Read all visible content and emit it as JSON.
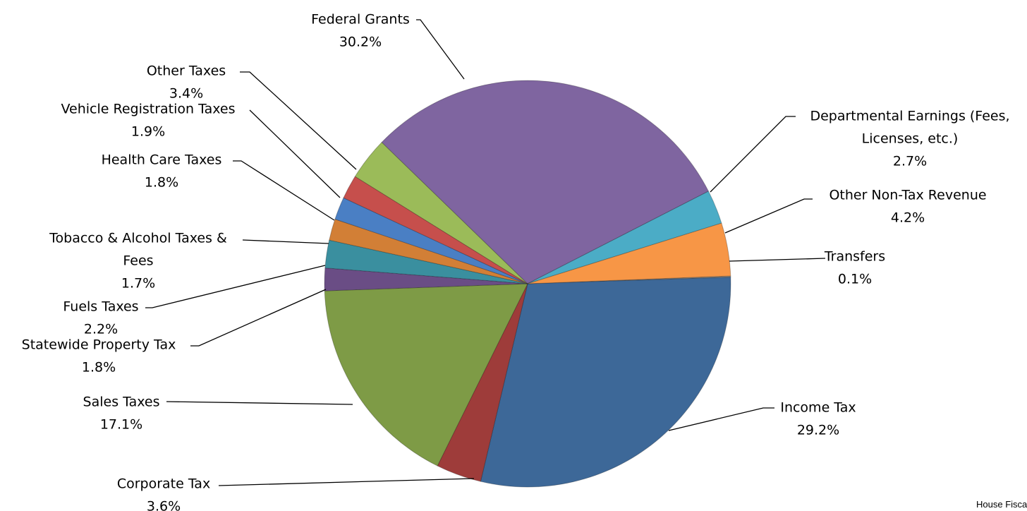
{
  "chart_data": {
    "type": "pie",
    "title": "",
    "slices": [
      {
        "label_lines": [
          "Transfers"
        ],
        "value": 0.1,
        "pct_text": "0.1%",
        "color": "#8c8c8c"
      },
      {
        "label_lines": [
          "Income Tax"
        ],
        "value": 29.2,
        "pct_text": "29.2%",
        "color": "#3d6898"
      },
      {
        "label_lines": [
          "Corporate Tax"
        ],
        "value": 3.6,
        "pct_text": "3.6%",
        "color": "#9e3c3a"
      },
      {
        "label_lines": [
          "Sales Taxes"
        ],
        "value": 17.1,
        "pct_text": "17.1%",
        "color": "#7e9b46"
      },
      {
        "label_lines": [
          "Statewide Property Tax"
        ],
        "value": 1.8,
        "pct_text": "1.8%",
        "color": "#6a4d85"
      },
      {
        "label_lines": [
          "Fuels Taxes"
        ],
        "value": 2.2,
        "pct_text": "2.2%",
        "color": "#3a8f9f"
      },
      {
        "label_lines": [
          "Tobacco & Alcohol Taxes &",
          "Fees"
        ],
        "value": 1.7,
        "pct_text": "1.7%",
        "color": "#d27f36"
      },
      {
        "label_lines": [
          "Health Care Taxes"
        ],
        "value": 1.8,
        "pct_text": "1.8%",
        "color": "#4a7fc4"
      },
      {
        "label_lines": [
          "Vehicle Registration Taxes"
        ],
        "value": 1.9,
        "pct_text": "1.9%",
        "color": "#c64f4c"
      },
      {
        "label_lines": [
          "Other Taxes"
        ],
        "value": 3.4,
        "pct_text": "3.4%",
        "color": "#9bbb59"
      },
      {
        "label_lines": [
          "Federal Grants"
        ],
        "value": 30.2,
        "pct_text": "30.2%",
        "color": "#7f65a0"
      },
      {
        "label_lines": [
          "Departmental Earnings (Fees,",
          "Licenses, etc.)"
        ],
        "value": 2.7,
        "pct_text": "2.7%",
        "color": "#4bacc6"
      },
      {
        "label_lines": [
          "Other Non-Tax Revenue"
        ],
        "value": 4.2,
        "pct_text": "4.2%",
        "color": "#f79646"
      }
    ]
  },
  "footer": {
    "text": "House Fiscal Agency"
  }
}
